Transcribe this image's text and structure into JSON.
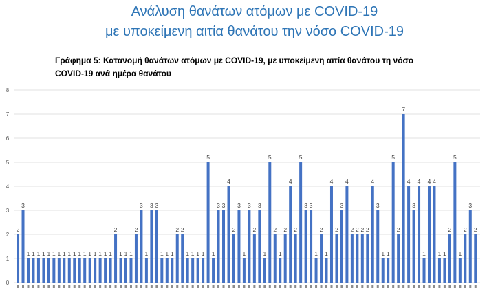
{
  "header": {
    "title_line1": "Ανάλυση θανάτων ατόμων με COVID-19",
    "title_line2": "με υποκείμενη αιτία θανάτου την νόσο COVID-19"
  },
  "chart_data": {
    "type": "bar",
    "title_lines": [
      "Γράφημα 5: Κατανομή θανάτων ατόμων με COVID-19, με υποκείμενη αιτία θανάτου τη νόσο",
      "COVID-19 ανά ημέρα θανάτου"
    ],
    "xlabel": "",
    "ylabel": "",
    "ylim": [
      0,
      8
    ],
    "yticks": [
      0,
      1,
      2,
      3,
      4,
      5,
      6,
      7,
      8
    ],
    "grid": true,
    "data_labels": true,
    "values": [
      2,
      3,
      1,
      1,
      1,
      1,
      1,
      1,
      1,
      1,
      1,
      1,
      1,
      1,
      1,
      1,
      1,
      1,
      1,
      2,
      1,
      1,
      1,
      2,
      3,
      1,
      3,
      3,
      1,
      1,
      1,
      2,
      2,
      1,
      1,
      1,
      1,
      5,
      1,
      3,
      3,
      4,
      2,
      3,
      1,
      3,
      2,
      3,
      1,
      5,
      2,
      1,
      2,
      4,
      2,
      5,
      3,
      3,
      1,
      2,
      1,
      4,
      2,
      3,
      4,
      2,
      2,
      2,
      2,
      4,
      3,
      1,
      1,
      5,
      2,
      7,
      4,
      3,
      4,
      1,
      4,
      4,
      1,
      1,
      2,
      5,
      1,
      2,
      3,
      2
    ],
    "colors": {
      "bar": "#4472c4",
      "grid": "#d9d9d9",
      "title": "#2e75b6"
    }
  }
}
